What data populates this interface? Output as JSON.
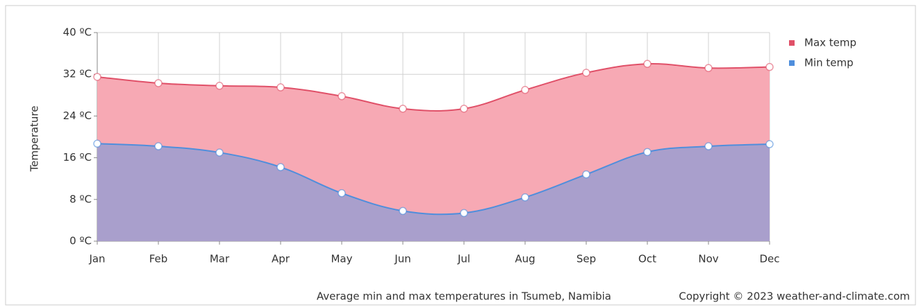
{
  "chart_data": {
    "type": "area",
    "y_label": "Temperature",
    "caption": "Average min and max temperatures in Tsumeb, Namibia",
    "copyright": "Copyright © 2023  weather-and-climate.com",
    "categories": [
      "Jan",
      "Feb",
      "Mar",
      "Apr",
      "May",
      "Jun",
      "Jul",
      "Aug",
      "Sep",
      "Oct",
      "Nov",
      "Dec"
    ],
    "series": [
      {
        "name": "Max temp",
        "color": "#e05068",
        "fill": "#f7a9b4",
        "values": [
          31.5,
          30.3,
          29.8,
          29.5,
          27.8,
          25.4,
          25.4,
          29.0,
          32.3,
          34.0,
          33.2,
          33.4
        ]
      },
      {
        "name": "Min temp",
        "color": "#4f8edc",
        "fill": "#a99fcc",
        "values": [
          18.7,
          18.2,
          17.0,
          14.2,
          9.2,
          5.8,
          5.4,
          8.4,
          12.8,
          17.1,
          18.2,
          18.6
        ]
      }
    ],
    "ylim": [
      0,
      40
    ],
    "yticks": [
      {
        "value": 0,
        "label": "0 ºC"
      },
      {
        "value": 8,
        "label": "8 ºC"
      },
      {
        "value": 16,
        "label": "16 ºC"
      },
      {
        "value": 24,
        "label": "24 ºC"
      },
      {
        "value": 32,
        "label": "32 ºC"
      },
      {
        "value": 40,
        "label": "40 ºC"
      }
    ],
    "grid": true
  }
}
